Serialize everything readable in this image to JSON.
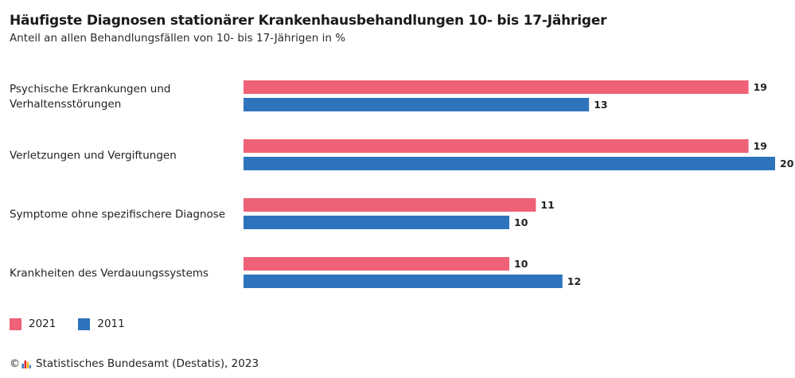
{
  "header": {
    "title": "Häufigste Diagnosen stationärer Krankenhausbehandlungen 10- bis 17-Jähriger",
    "subtitle": "Anteil an allen Behandlungsfällen von 10- bis 17-Jährigen in %"
  },
  "chart_data": {
    "type": "bar",
    "orientation": "horizontal",
    "categories": [
      [
        "Psychische Erkrankungen und",
        "Verhaltensstörungen"
      ],
      [
        "Verletzungen und Vergiftungen"
      ],
      [
        "Symptome ohne spezifischere Diagnose"
      ],
      [
        "Krankheiten des Verdauungssystems"
      ]
    ],
    "series": [
      {
        "name": "2021",
        "color": "#ee6177",
        "values": [
          19,
          19,
          11,
          10
        ]
      },
      {
        "name": "2011",
        "color": "#2e74bd",
        "values": [
          13,
          20,
          10,
          12
        ]
      }
    ],
    "xlim": [
      0,
      20
    ],
    "grid": false,
    "legend_position": "bottom-left",
    "data_labels": true
  },
  "legend": {
    "items": [
      {
        "label": "2021",
        "color": "#ee6177"
      },
      {
        "label": "2011",
        "color": "#2e74bd"
      }
    ]
  },
  "footer": {
    "copyright_symbol": "©",
    "logo_icon": "destatis-logo-icon",
    "source": "Statistisches Bundesamt (Destatis), 2023"
  }
}
